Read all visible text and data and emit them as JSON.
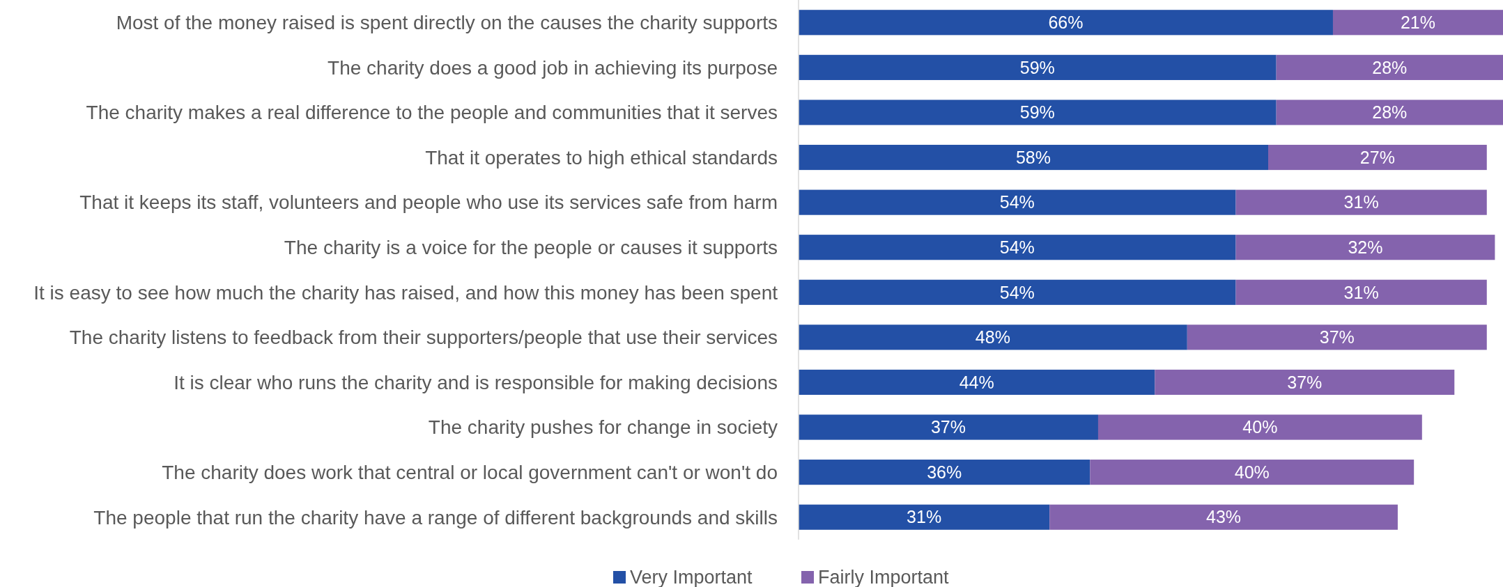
{
  "chart_data": {
    "type": "bar",
    "orientation": "horizontal",
    "stacked": true,
    "legend": "bottom",
    "categories": [
      "Most of the money raised is spent directly on the causes the charity supports",
      "The charity does a good job in achieving its purpose",
      "The charity makes a real difference to the people and communities that it serves",
      "That it operates to high ethical standards",
      "That it keeps its staff, volunteers and people who use its services safe from harm",
      "The charity is a voice for the people or causes it supports",
      "It is easy to see how much the charity has raised, and how this money has been spent",
      "The charity listens to feedback from their supporters/people that use their services",
      "It is clear who runs the charity and is responsible for making decisions",
      "The charity pushes for change in society",
      "The charity does work that central or local government can't or won't do",
      "The people that run the charity have a range of different backgrounds and skills"
    ],
    "series": [
      {
        "name": "Very Important",
        "color": "#2350a6",
        "values": [
          66,
          59,
          59,
          58,
          54,
          54,
          54,
          48,
          44,
          37,
          36,
          31
        ],
        "value_labels": [
          "66%",
          "59%",
          "59%",
          "58%",
          "54%",
          "54%",
          "54%",
          "48%",
          "44%",
          "37%",
          "36%",
          "31%"
        ]
      },
      {
        "name": "Fairly Important",
        "color": "#8463ad",
        "values": [
          21,
          28,
          28,
          27,
          31,
          32,
          31,
          37,
          37,
          40,
          40,
          43
        ],
        "value_labels": [
          "21%",
          "28%",
          "28%",
          "27%",
          "31%",
          "32%",
          "31%",
          "37%",
          "37%",
          "40%",
          "40%",
          "43%"
        ]
      }
    ]
  }
}
